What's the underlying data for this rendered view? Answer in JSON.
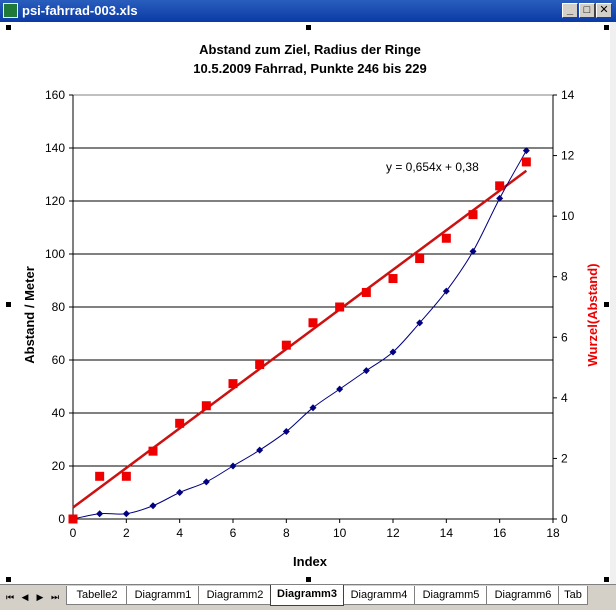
{
  "window": {
    "title": "psi-fahrrad-003.xls",
    "min_label": "_",
    "max_label": "□",
    "close_label": "✕"
  },
  "chart_data": {
    "type": "scatter",
    "title": "Abstand zum Ziel, Radius der Ringe",
    "subtitle": "10.5.2009 Fahrrad, Punkte 246 bis 229",
    "xlabel": "Index",
    "ylabel": "Abstand / Meter",
    "y2label": "Wurzel(Abstand)",
    "xlim": [
      0,
      18
    ],
    "xticks": [
      0,
      2,
      4,
      6,
      8,
      10,
      12,
      14,
      16,
      18
    ],
    "ylim": [
      0,
      160
    ],
    "yticks": [
      0,
      20,
      40,
      60,
      80,
      100,
      120,
      140,
      160
    ],
    "y2lim": [
      0,
      14
    ],
    "y2ticks": [
      0,
      2,
      4,
      6,
      8,
      10,
      12,
      14
    ],
    "grid": "horizontal",
    "trendline_label": "y = 0,654x + 0,38",
    "trendline": {
      "slope": 0.654,
      "intercept": 0.38,
      "x_range": [
        0,
        17
      ],
      "color": "#cc1111",
      "axis": "y2"
    },
    "series": [
      {
        "axis": "y",
        "color": "#000080",
        "marker": "diamond",
        "x": [
          0,
          1,
          2,
          3,
          4,
          5,
          6,
          7,
          8,
          9,
          10,
          11,
          12,
          13,
          14,
          15,
          16,
          17
        ],
        "values": [
          0,
          2,
          2,
          5,
          10,
          14,
          20,
          26,
          33,
          42,
          49,
          56,
          63,
          74,
          86,
          101,
          121,
          139
        ]
      },
      {
        "axis": "y2",
        "color": "#ee0000",
        "marker": "square",
        "x": [
          0,
          1,
          2,
          3,
          4,
          5,
          6,
          7,
          8,
          9,
          10,
          11,
          12,
          13,
          14,
          15,
          16,
          17
        ],
        "values": [
          0,
          1.41,
          1.41,
          2.24,
          3.16,
          3.74,
          4.47,
          5.1,
          5.74,
          6.48,
          7.0,
          7.48,
          7.94,
          8.6,
          9.27,
          10.05,
          11.0,
          11.79
        ]
      }
    ]
  },
  "sheet_tabs": [
    "Tabelle2",
    "Diagramm1",
    "Diagramm2",
    "Diagramm3",
    "Diagramm4",
    "Diagramm5",
    "Diagramm6",
    "Tab"
  ],
  "active_tab": "Diagramm3",
  "nav": {
    "first": "⏮",
    "prev": "◀",
    "next": "▶",
    "last": "⏭"
  }
}
